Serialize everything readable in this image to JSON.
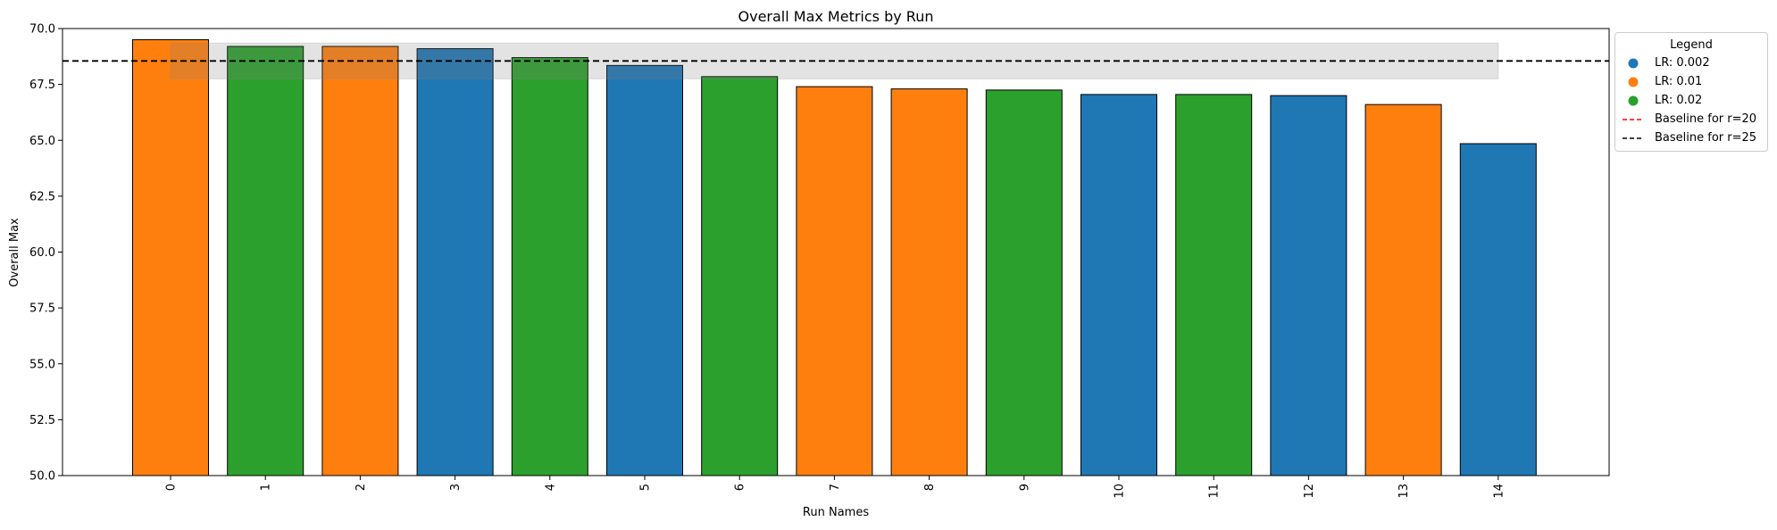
{
  "chart_data": {
    "type": "bar",
    "title": "Overall Max Metrics by Run",
    "xlabel": "Run Names",
    "ylabel": "Overall Max",
    "ylim": [
      50.0,
      70.0
    ],
    "yticks": [
      "50.0",
      "52.5",
      "55.0",
      "57.5",
      "60.0",
      "62.5",
      "65.0",
      "67.5",
      "70.0"
    ],
    "categories": [
      "0",
      "1",
      "2",
      "3",
      "4",
      "5",
      "6",
      "7",
      "8",
      "9",
      "10",
      "11",
      "12",
      "13",
      "14"
    ],
    "values": [
      69.5,
      69.2,
      69.2,
      69.1,
      68.7,
      68.35,
      67.85,
      67.4,
      67.3,
      67.25,
      67.05,
      67.05,
      67.0,
      66.6,
      64.85
    ],
    "bar_groups": [
      "LR: 0.01",
      "LR: 0.02",
      "LR: 0.01",
      "LR: 0.002",
      "LR: 0.02",
      "LR: 0.002",
      "LR: 0.02",
      "LR: 0.01",
      "LR: 0.01",
      "LR: 0.02",
      "LR: 0.002",
      "LR: 0.02",
      "LR: 0.002",
      "LR: 0.01",
      "LR: 0.002"
    ],
    "baseline": {
      "name": "Baseline for r=25",
      "value": 68.55,
      "band": [
        67.75,
        69.35
      ],
      "color": "#000000",
      "style": "dashed"
    },
    "colors": {
      "LR: 0.002": "#1f77b4",
      "LR: 0.01": "#ff7f0e",
      "LR: 0.02": "#2ca02c"
    },
    "legend": {
      "title": "Legend",
      "placement": "outside-top-right",
      "entries": [
        {
          "label": "LR: 0.002",
          "marker": "dot",
          "color": "#1f77b4"
        },
        {
          "label": "LR: 0.01",
          "marker": "dot",
          "color": "#ff7f0e"
        },
        {
          "label": "LR: 0.02",
          "marker": "dot",
          "color": "#2ca02c"
        },
        {
          "label": "Baseline for r=20",
          "marker": "dashed-line",
          "color": "#ff0000"
        },
        {
          "label": "Baseline for r=25",
          "marker": "dashed-line",
          "color": "#000000"
        }
      ]
    },
    "grid": false
  }
}
